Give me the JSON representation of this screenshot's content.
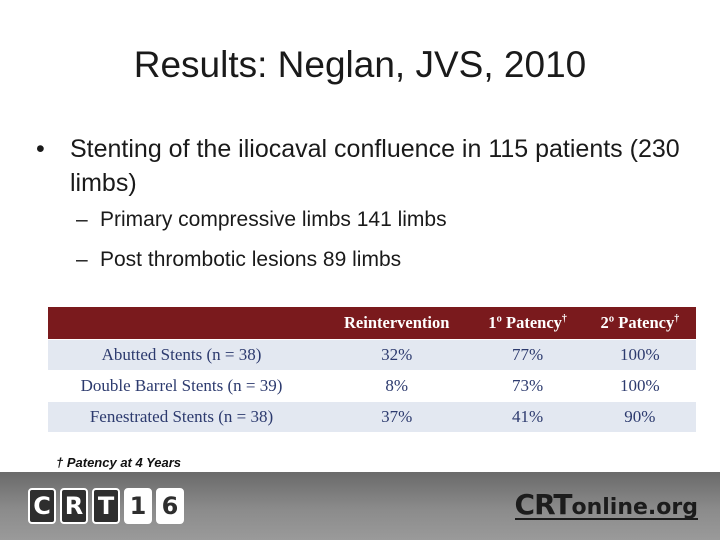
{
  "title": "Results: Neglan, JVS, 2010",
  "bullets": {
    "main_symbol": "•",
    "main_text": "Stenting of the iliocaval confluence in 115 patients (230 limbs)",
    "sub_symbol": "–",
    "sub_items": [
      "Primary compressive limbs 141 limbs",
      "Post thrombotic lesions 89 limbs"
    ]
  },
  "table": {
    "header_color": "#7a1a1d",
    "row_shade_color": "#e3e8f1",
    "text_color": "#2c3a6e",
    "headers": [
      "",
      "Reintervention",
      "1º Patency",
      "2º Patency"
    ],
    "header_dagger": "†",
    "rows": [
      [
        "Abutted Stents (n = 38)",
        "32%",
        "77%",
        "100%"
      ],
      [
        "Double Barrel Stents (n = 39)",
        "8%",
        "73%",
        "100%"
      ],
      [
        "Fenestrated Stents (n = 38)",
        "37%",
        "41%",
        "90%"
      ]
    ]
  },
  "footnote": "† Patency at 4 Years",
  "footer": {
    "logo_left_letters": [
      "C",
      "R",
      "T",
      "1",
      "6"
    ],
    "logo_right_main": "CRT",
    "logo_right_suffix": "online.org"
  }
}
